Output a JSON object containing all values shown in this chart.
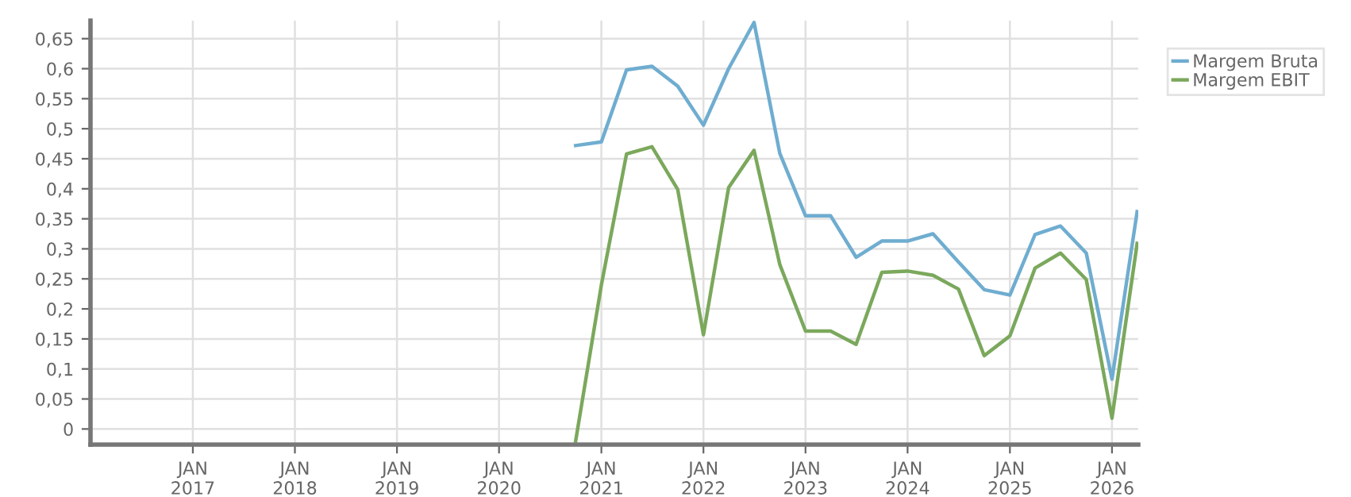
{
  "chart_data": {
    "type": "line",
    "x": [
      "2020-10",
      "2021-01",
      "2021-04",
      "2021-07",
      "2021-10",
      "2022-01",
      "2022-04",
      "2022-07",
      "2022-10",
      "2023-01",
      "2023-04",
      "2023-07",
      "2023-10",
      "2024-01",
      "2024-04",
      "2024-07",
      "2024-10",
      "2025-01",
      "2025-04",
      "2025-07",
      "2025-10",
      "2026-01",
      "2026-04"
    ],
    "series": [
      {
        "name": "Margem Bruta",
        "color": "#6fadd0",
        "values": [
          0.472,
          0.478,
          0.598,
          0.604,
          0.571,
          0.506,
          0.6,
          0.677,
          0.459,
          0.355,
          0.355,
          0.286,
          0.313,
          0.313,
          0.325,
          0.278,
          0.232,
          0.223,
          0.324,
          0.338,
          0.293,
          0.083,
          0.362
        ]
      },
      {
        "name": "Margem EBIT",
        "color": "#7ba85c",
        "values": [
          -0.02,
          0.24,
          0.458,
          0.47,
          0.399,
          0.157,
          0.402,
          0.464,
          0.274,
          0.163,
          0.163,
          0.141,
          0.261,
          0.263,
          0.256,
          0.233,
          0.122,
          0.155,
          0.268,
          0.293,
          0.249,
          0.018,
          0.309
        ]
      }
    ],
    "xlim": [
      "2016-01",
      "2026-04-05"
    ],
    "xticks": [
      {
        "value": "2017-01",
        "label": "JAN\n2017"
      },
      {
        "value": "2018-01",
        "label": "JAN\n2018"
      },
      {
        "value": "2019-01",
        "label": "JAN\n2019"
      },
      {
        "value": "2020-01",
        "label": "JAN\n2020"
      },
      {
        "value": "2021-01",
        "label": "JAN\n2021"
      },
      {
        "value": "2022-01",
        "label": "JAN\n2022"
      },
      {
        "value": "2023-01",
        "label": "JAN\n2023"
      },
      {
        "value": "2024-01",
        "label": "JAN\n2024"
      },
      {
        "value": "2025-01",
        "label": "JAN\n2025"
      },
      {
        "value": "2026-01",
        "label": "JAN\n2026"
      }
    ],
    "ylim": [
      -0.026,
      0.68
    ],
    "yticks": [
      {
        "value": 0,
        "label": "0"
      },
      {
        "value": 0.05,
        "label": "0,05"
      },
      {
        "value": 0.1,
        "label": "0,1"
      },
      {
        "value": 0.15,
        "label": "0,15"
      },
      {
        "value": 0.2,
        "label": "0,2"
      },
      {
        "value": 0.25,
        "label": "0,25"
      },
      {
        "value": 0.3,
        "label": "0,3"
      },
      {
        "value": 0.35,
        "label": "0,35"
      },
      {
        "value": 0.4,
        "label": "0,4"
      },
      {
        "value": 0.45,
        "label": "0,45"
      },
      {
        "value": 0.5,
        "label": "0,5"
      },
      {
        "value": 0.55,
        "label": "0,55"
      },
      {
        "value": 0.6,
        "label": "0,6"
      },
      {
        "value": 0.65,
        "label": "0,65"
      }
    ],
    "grid": true,
    "legend": "top right",
    "marker": "none",
    "line_style": "solid"
  }
}
